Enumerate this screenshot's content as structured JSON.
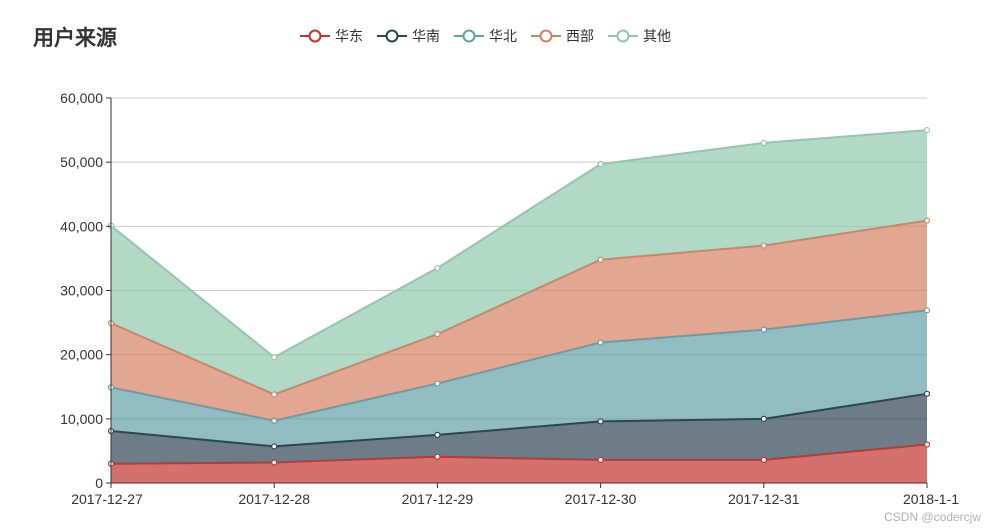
{
  "chart_data": {
    "type": "area",
    "stacked": true,
    "title": "用户来源",
    "categories": [
      "2017-12-27",
      "2017-12-28",
      "2017-12-29",
      "2017-12-30",
      "2017-12-31",
      "2018-1-1"
    ],
    "ylim": [
      0,
      60000
    ],
    "yticks": [
      "0",
      "10,000",
      "20,000",
      "30,000",
      "40,000",
      "50,000",
      "60,000"
    ],
    "grid": true,
    "legend_position": "top-center",
    "series": [
      {
        "name": "华东",
        "color": "#c23531",
        "values": [
          3000,
          3200,
          4100,
          3600,
          3600,
          6000
        ]
      },
      {
        "name": "华南",
        "color": "#2f4554",
        "values": [
          5100,
          2500,
          3400,
          6000,
          6400,
          7900
        ]
      },
      {
        "name": "华北",
        "color": "#61a0a8",
        "values": [
          6800,
          4000,
          8000,
          12300,
          13900,
          13000
        ]
      },
      {
        "name": "西部",
        "color": "#d48265",
        "values": [
          10000,
          4100,
          7700,
          12900,
          13100,
          14000
        ]
      },
      {
        "name": "其他",
        "color": "#91c7ae",
        "values": [
          15200,
          5800,
          10300,
          14900,
          16000,
          14100
        ]
      }
    ]
  },
  "watermark": "CSDN @codercjw"
}
